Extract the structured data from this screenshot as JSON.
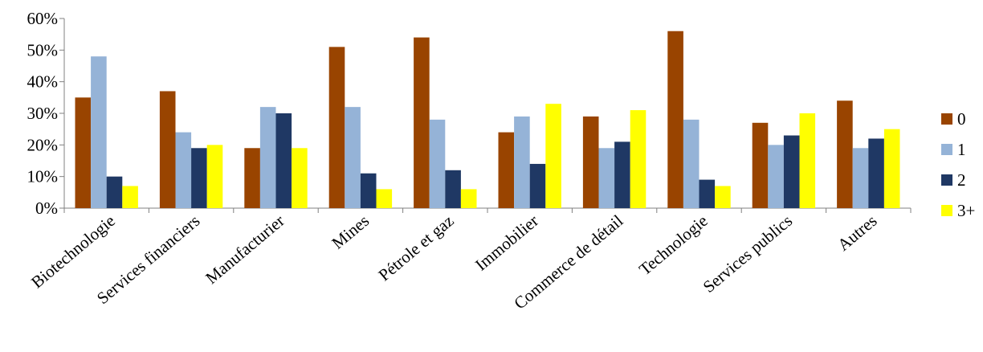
{
  "chart_data": {
    "type": "bar",
    "title": "",
    "xlabel": "",
    "ylabel": "",
    "ylim": [
      0,
      60
    ],
    "y_ticks": [
      "0%",
      "10%",
      "20%",
      "30%",
      "40%",
      "50%",
      "60%"
    ],
    "y_unit": "%",
    "grid": false,
    "legend_position": "right",
    "categories": [
      "Biotechnologie",
      "Services financiers",
      "Manufacturier",
      "Mines",
      "Pétrole et gaz",
      "Immobilier",
      "Commerce de détail",
      "Technologie",
      "Services publics",
      "Autres"
    ],
    "series": [
      {
        "name": "0",
        "color": "#994400",
        "values": [
          35,
          37,
          19,
          51,
          54,
          24,
          29,
          56,
          27,
          34
        ]
      },
      {
        "name": "1",
        "color": "#95B3D7",
        "values": [
          48,
          24,
          32,
          32,
          28,
          29,
          19,
          28,
          20,
          19
        ]
      },
      {
        "name": "2",
        "color": "#1F3864",
        "values": [
          10,
          19,
          30,
          11,
          12,
          14,
          21,
          9,
          23,
          22
        ]
      },
      {
        "name": "3+",
        "color": "#FFFF00",
        "values": [
          7,
          20,
          19,
          6,
          6,
          33,
          31,
          7,
          30,
          25
        ]
      }
    ]
  }
}
